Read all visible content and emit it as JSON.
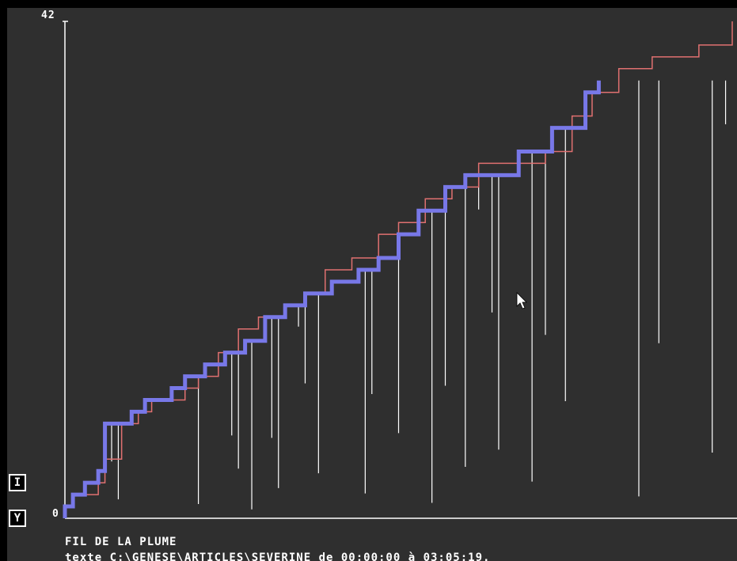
{
  "buttons": {
    "i_label": "I",
    "y_label": "Y"
  },
  "footer": {
    "title": "FIL DE LA PLUME",
    "subtitle": "texte C:\\GENESE\\ARTICLES\\SEVERINE de 00:00:00 à 03:05:19."
  },
  "colors": {
    "background": "#2f2f2f",
    "max_line": "#e07070",
    "main_path": "#7878e8",
    "revisions": "#ffffff"
  },
  "icons": [
    "mouse-cursor-icon"
  ],
  "chart_data": {
    "type": "line",
    "title": "FIL DE LA PLUME",
    "subtitle": "texte C:\\GENESE\\ARTICLES\\SEVERINE de 00:00:00 à 03:05:19.",
    "ylim": [
      0,
      42
    ],
    "y_tick_labels": [
      "0",
      "42"
    ],
    "xlim": [
      0,
      1
    ],
    "grid": false,
    "series": [
      {
        "style": "red-thin",
        "points": [
          [
            0.0,
            0
          ],
          [
            0.0,
            1
          ],
          [
            0.012,
            1
          ],
          [
            0.012,
            2
          ],
          [
            0.05,
            2
          ],
          [
            0.05,
            3
          ],
          [
            0.06,
            3
          ],
          [
            0.06,
            5
          ],
          [
            0.085,
            5
          ],
          [
            0.085,
            8
          ],
          [
            0.11,
            8
          ],
          [
            0.11,
            9
          ],
          [
            0.13,
            9
          ],
          [
            0.13,
            10
          ],
          [
            0.18,
            10
          ],
          [
            0.18,
            11
          ],
          [
            0.2,
            11
          ],
          [
            0.2,
            12
          ],
          [
            0.23,
            12
          ],
          [
            0.23,
            14
          ],
          [
            0.26,
            14
          ],
          [
            0.26,
            16
          ],
          [
            0.29,
            16
          ],
          [
            0.29,
            17
          ],
          [
            0.33,
            17
          ],
          [
            0.33,
            18
          ],
          [
            0.36,
            18
          ],
          [
            0.36,
            19
          ],
          [
            0.39,
            19
          ],
          [
            0.39,
            21
          ],
          [
            0.43,
            21
          ],
          [
            0.43,
            22
          ],
          [
            0.47,
            22
          ],
          [
            0.47,
            24
          ],
          [
            0.5,
            24
          ],
          [
            0.5,
            25
          ],
          [
            0.54,
            25
          ],
          [
            0.54,
            27
          ],
          [
            0.58,
            27
          ],
          [
            0.58,
            28
          ],
          [
            0.62,
            28
          ],
          [
            0.62,
            30
          ],
          [
            0.72,
            30
          ],
          [
            0.72,
            31
          ],
          [
            0.76,
            31
          ],
          [
            0.76,
            34
          ],
          [
            0.79,
            34
          ],
          [
            0.79,
            36
          ],
          [
            0.83,
            36
          ],
          [
            0.83,
            38
          ],
          [
            0.88,
            38
          ],
          [
            0.88,
            39
          ],
          [
            0.95,
            39
          ],
          [
            0.95,
            40
          ],
          [
            1.0,
            40
          ],
          [
            1.0,
            41
          ],
          [
            1.0,
            42
          ]
        ]
      },
      {
        "style": "blue-thick",
        "points": [
          [
            0.0,
            0
          ],
          [
            0.0,
            1
          ],
          [
            0.012,
            1
          ],
          [
            0.012,
            2
          ],
          [
            0.03,
            2
          ],
          [
            0.03,
            3
          ],
          [
            0.05,
            3
          ],
          [
            0.05,
            4
          ],
          [
            0.06,
            4
          ],
          [
            0.06,
            8
          ],
          [
            0.1,
            8
          ],
          [
            0.1,
            9
          ],
          [
            0.12,
            9
          ],
          [
            0.12,
            10
          ],
          [
            0.16,
            10
          ],
          [
            0.16,
            11
          ],
          [
            0.18,
            11
          ],
          [
            0.18,
            12
          ],
          [
            0.21,
            12
          ],
          [
            0.21,
            13
          ],
          [
            0.24,
            13
          ],
          [
            0.24,
            14
          ],
          [
            0.27,
            14
          ],
          [
            0.27,
            15
          ],
          [
            0.3,
            15
          ],
          [
            0.3,
            17
          ],
          [
            0.33,
            17
          ],
          [
            0.33,
            18
          ],
          [
            0.36,
            18
          ],
          [
            0.36,
            19
          ],
          [
            0.4,
            19
          ],
          [
            0.4,
            20
          ],
          [
            0.44,
            20
          ],
          [
            0.44,
            21
          ],
          [
            0.47,
            21
          ],
          [
            0.47,
            22
          ],
          [
            0.5,
            22
          ],
          [
            0.5,
            24
          ],
          [
            0.53,
            24
          ],
          [
            0.53,
            26
          ],
          [
            0.57,
            26
          ],
          [
            0.57,
            28
          ],
          [
            0.6,
            28
          ],
          [
            0.6,
            29
          ],
          [
            0.68,
            29
          ],
          [
            0.68,
            31
          ],
          [
            0.73,
            31
          ],
          [
            0.73,
            33
          ],
          [
            0.78,
            33
          ],
          [
            0.78,
            36
          ],
          [
            0.8,
            36
          ],
          [
            0.8,
            37
          ]
        ]
      }
    ]
  }
}
